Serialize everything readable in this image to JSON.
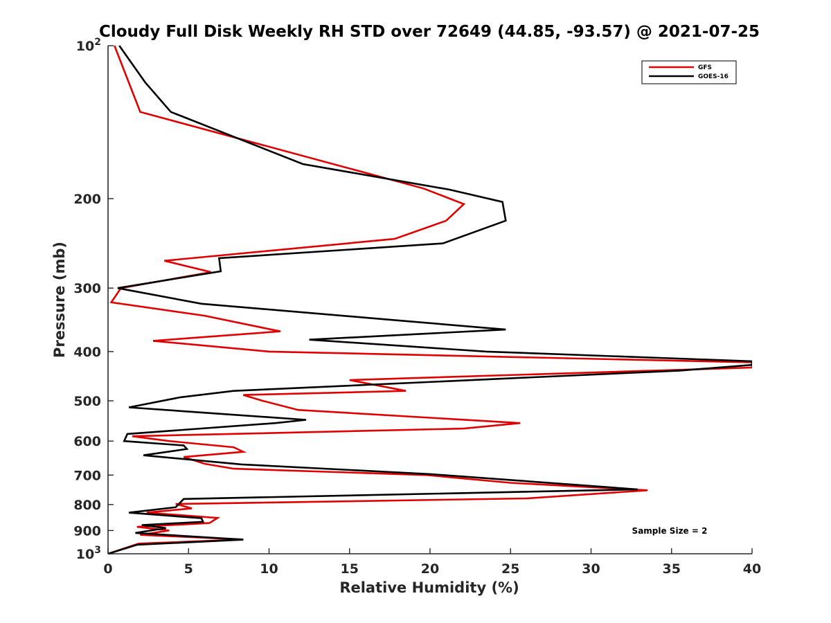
{
  "chart_data": {
    "type": "line",
    "title": "Cloudy Full Disk Weekly RH STD over 72649 (44.85, -93.57) @ 2021-07-25",
    "xlabel": "Relative Humidity (%)",
    "ylabel": "Pressure (mb)",
    "xlim": [
      0,
      40
    ],
    "ylim": [
      100,
      1000
    ],
    "y_scale": "log",
    "y_direction": "reversed",
    "grid": false,
    "legend_placement": "top-right",
    "x_ticks": [
      "0",
      "5",
      "10",
      "15",
      "20",
      "25",
      "30",
      "35",
      "40"
    ],
    "y_ticks": [
      {
        "value": 100,
        "base": "10",
        "exp": "2"
      },
      {
        "value": 200,
        "label": "200"
      },
      {
        "value": 300,
        "label": "300"
      },
      {
        "value": 400,
        "label": "400"
      },
      {
        "value": 500,
        "label": "500"
      },
      {
        "value": 600,
        "label": "600"
      },
      {
        "value": 700,
        "label": "700"
      },
      {
        "value": 800,
        "label": "800"
      },
      {
        "value": 900,
        "label": "900"
      },
      {
        "value": 1000,
        "base": "10",
        "exp": "3"
      }
    ],
    "annotation": "Sample Size = 2",
    "series": [
      {
        "name": "GFS",
        "color": "#e00000",
        "points": [
          [
            0.4,
            100
          ],
          [
            2.0,
            135
          ],
          [
            19.6,
            191
          ],
          [
            22.1,
            205
          ],
          [
            21.0,
            221
          ],
          [
            17.8,
            240
          ],
          [
            3.5,
            265
          ],
          [
            6.4,
            279
          ],
          [
            0.8,
            300
          ],
          [
            0.2,
            320
          ],
          [
            6.0,
            340
          ],
          [
            10.7,
            365
          ],
          [
            2.8,
            381
          ],
          [
            10.0,
            400
          ],
          [
            40.0,
            420
          ],
          [
            40.0,
            430
          ],
          [
            15.0,
            455
          ],
          [
            18.5,
            478
          ],
          [
            8.4,
            487
          ],
          [
            9.6,
            500
          ],
          [
            11.8,
            521
          ],
          [
            25.6,
            553
          ],
          [
            22.1,
            567
          ],
          [
            1.5,
            587
          ],
          [
            3.8,
            600
          ],
          [
            7.8,
            617
          ],
          [
            8.4,
            630
          ],
          [
            4.7,
            645
          ],
          [
            6.0,
            665
          ],
          [
            7.8,
            680
          ],
          [
            19.8,
            700
          ],
          [
            25.0,
            725
          ],
          [
            33.5,
            750
          ],
          [
            26.0,
            778
          ],
          [
            4.2,
            798
          ],
          [
            5.2,
            814
          ],
          [
            2.4,
            830
          ],
          [
            6.8,
            850
          ],
          [
            6.3,
            870
          ],
          [
            1.8,
            885
          ],
          [
            3.8,
            900
          ],
          [
            2.0,
            918
          ],
          [
            8.4,
            937
          ],
          [
            1.9,
            955
          ],
          [
            0.0,
            1000
          ]
        ]
      },
      {
        "name": "GOES-16",
        "color": "#000000",
        "points": [
          [
            0.7,
            100
          ],
          [
            2.3,
            118
          ],
          [
            3.9,
            135
          ],
          [
            12.1,
            171
          ],
          [
            21.2,
            192
          ],
          [
            24.5,
            203
          ],
          [
            24.7,
            221
          ],
          [
            20.8,
            245
          ],
          [
            6.9,
            262
          ],
          [
            7.0,
            278
          ],
          [
            0.6,
            300
          ],
          [
            5.8,
            322
          ],
          [
            17.4,
            346
          ],
          [
            24.7,
            362
          ],
          [
            12.5,
            379
          ],
          [
            23.5,
            400
          ],
          [
            40.0,
            418
          ],
          [
            40.0,
            425
          ],
          [
            35.5,
            436
          ],
          [
            7.8,
            478
          ],
          [
            4.5,
            492
          ],
          [
            1.3,
            515
          ],
          [
            12.3,
            545
          ],
          [
            10.4,
            553
          ],
          [
            1.2,
            581
          ],
          [
            1.0,
            600
          ],
          [
            4.7,
            612
          ],
          [
            4.9,
            622
          ],
          [
            2.2,
            640
          ],
          [
            8.3,
            667
          ],
          [
            20.0,
            697
          ],
          [
            32.9,
            747
          ],
          [
            4.7,
            780
          ],
          [
            4.2,
            810
          ],
          [
            1.3,
            830
          ],
          [
            5.8,
            851
          ],
          [
            5.9,
            865
          ],
          [
            2.1,
            878
          ],
          [
            3.6,
            890
          ],
          [
            1.7,
            910
          ],
          [
            8.4,
            938
          ],
          [
            1.8,
            960
          ],
          [
            0.0,
            1000
          ]
        ]
      }
    ]
  }
}
